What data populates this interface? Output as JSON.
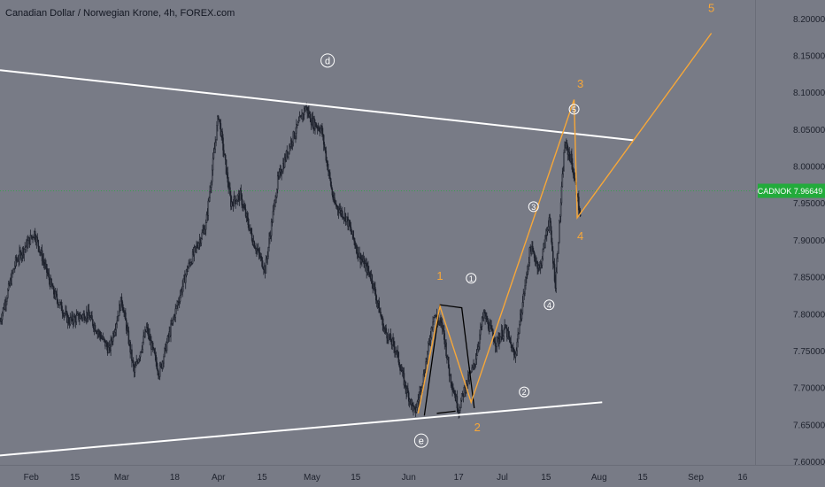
{
  "header": {
    "title": "Canadian Dollar / Norwegian Krone, 4h, FOREX.com"
  },
  "colors": {
    "background": "#787b86",
    "candles": "#1e222d",
    "trendlines": "#ffffff",
    "waves": "#f7a738",
    "last_price_bg": "#22ab3b",
    "axis_text": "#1e222d"
  },
  "price_axis": {
    "ticks": [
      "8.20000",
      "8.15000",
      "8.10000",
      "8.05000",
      "8.00000",
      "7.95000",
      "7.90000",
      "7.85000",
      "7.80000",
      "7.75000",
      "7.70000",
      "7.65000",
      "7.60000"
    ],
    "tick_values": [
      8.2,
      8.15,
      8.1,
      8.05,
      8.0,
      7.95,
      7.9,
      7.85,
      7.8,
      7.75,
      7.7,
      7.65,
      7.6
    ],
    "last_price": {
      "symbol": "CADNOK",
      "value": 7.96649,
      "value_label": "7.96649"
    }
  },
  "time_axis": {
    "labels": [
      "Feb",
      "15",
      "Mar",
      "18",
      "Apr",
      "15",
      "May",
      "15",
      "Jun",
      "17",
      "Jul",
      "15",
      "Aug",
      "15",
      "Sep",
      "16"
    ],
    "label_dates": [
      "2024-02-01",
      "2024-02-15",
      "2024-03-01",
      "2024-03-18",
      "2024-04-01",
      "2024-04-15",
      "2024-05-01",
      "2024-05-15",
      "2024-06-01",
      "2024-06-17",
      "2024-07-01",
      "2024-07-15",
      "2024-08-01",
      "2024-08-15",
      "2024-09-01",
      "2024-09-16"
    ]
  },
  "chart_data": {
    "type": "line",
    "symbol": "CADNOK",
    "timeframe": "4h",
    "ylim": [
      7.6,
      8.225
    ],
    "xlim": [
      "2024-01-22",
      "2024-09-20"
    ],
    "grid": false,
    "price_path": {
      "x": [
        "2024-01-22",
        "2024-01-27",
        "2024-02-02",
        "2024-02-08",
        "2024-02-13",
        "2024-02-19",
        "2024-02-26",
        "2024-03-01",
        "2024-03-05",
        "2024-03-09",
        "2024-03-13",
        "2024-03-18",
        "2024-03-22",
        "2024-03-28",
        "2024-04-01",
        "2024-04-05",
        "2024-04-08",
        "2024-04-12",
        "2024-04-16",
        "2024-04-20",
        "2024-04-24",
        "2024-04-29",
        "2024-05-01",
        "2024-05-04",
        "2024-05-08",
        "2024-05-12",
        "2024-05-16",
        "2024-05-20",
        "2024-05-24",
        "2024-05-28",
        "2024-05-31",
        "2024-06-03",
        "2024-06-06",
        "2024-06-09",
        "2024-06-12",
        "2024-06-14",
        "2024-06-17",
        "2024-06-19",
        "2024-06-22",
        "2024-06-25",
        "2024-06-29",
        "2024-07-02",
        "2024-07-05",
        "2024-07-08",
        "2024-07-10",
        "2024-07-13",
        "2024-07-16",
        "2024-07-18",
        "2024-07-21",
        "2024-07-23",
        "2024-07-25",
        "2024-07-26"
      ],
      "y": [
        7.79,
        7.87,
        7.91,
        7.83,
        7.79,
        7.8,
        7.75,
        7.82,
        7.72,
        7.78,
        7.72,
        7.8,
        7.86,
        7.92,
        8.07,
        7.95,
        7.96,
        7.9,
        7.86,
        7.98,
        8.03,
        8.08,
        8.06,
        8.05,
        7.95,
        7.93,
        7.88,
        7.85,
        7.78,
        7.75,
        7.7,
        7.665,
        7.72,
        7.8,
        7.78,
        7.72,
        7.67,
        7.7,
        7.73,
        7.8,
        7.76,
        7.78,
        7.74,
        7.83,
        7.89,
        7.86,
        7.93,
        7.84,
        8.03,
        8.01,
        7.96,
        7.93
      ]
    },
    "trendlines": [
      {
        "name": "upper",
        "x": [
          "2024-01-22",
          "2024-08-12"
        ],
        "y": [
          8.13,
          8.035
        ]
      },
      {
        "name": "lower",
        "x": [
          "2024-01-22",
          "2024-08-02"
        ],
        "y": [
          7.608,
          7.68
        ]
      }
    ],
    "waves": {
      "x": [
        "2024-06-04",
        "2024-06-11",
        "2024-06-21",
        "2024-07-24",
        "2024-07-25",
        "2024-09-06"
      ],
      "y": [
        7.665,
        7.81,
        7.68,
        8.09,
        7.93,
        8.18
      ]
    },
    "wave_bracket": {
      "x": [
        "2024-06-06",
        "2024-06-11",
        "2024-06-18",
        "2024-06-22",
        "2024-06-10",
        "2024-06-16"
      ],
      "y": [
        7.662,
        7.812,
        7.808,
        7.672,
        7.665,
        7.668
      ]
    },
    "annotations": [
      {
        "text": "d",
        "x": "2024-05-06",
        "y": 8.143,
        "style": "circled-white"
      },
      {
        "text": "e",
        "x": "2024-06-05",
        "y": 7.628,
        "style": "circled-white"
      },
      {
        "text": "1",
        "x": "2024-06-11",
        "y": 7.852,
        "style": "orange"
      },
      {
        "text": "2",
        "x": "2024-06-23",
        "y": 7.647,
        "style": "orange"
      },
      {
        "text": "3",
        "x": "2024-07-26",
        "y": 8.112,
        "style": "orange"
      },
      {
        "text": "4",
        "x": "2024-07-26",
        "y": 7.906,
        "style": "orange"
      },
      {
        "text": "5",
        "x": "2024-09-06",
        "y": 8.215,
        "style": "orange"
      },
      {
        "text": "1",
        "x": "2024-06-21",
        "y": 7.848,
        "style": "circled-small"
      },
      {
        "text": "2",
        "x": "2024-07-08",
        "y": 7.694,
        "style": "circled-small"
      },
      {
        "text": "3",
        "x": "2024-07-11",
        "y": 7.945,
        "style": "circled-small"
      },
      {
        "text": "4",
        "x": "2024-07-16",
        "y": 7.812,
        "style": "circled-small"
      },
      {
        "text": "5",
        "x": "2024-07-24",
        "y": 8.077,
        "style": "circled-small"
      }
    ]
  }
}
